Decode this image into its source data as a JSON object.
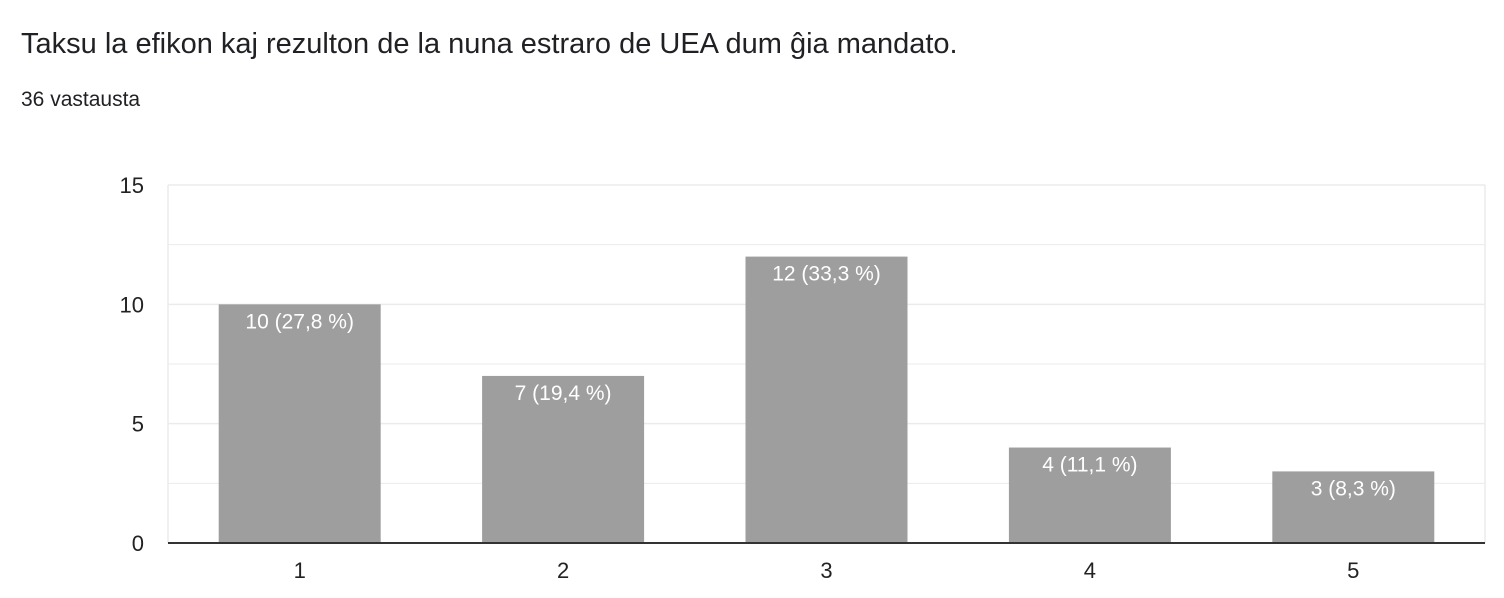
{
  "header": {
    "title": "Taksu la efikon kaj rezulton de la nuna estraro de UEA dum ĝia mandato.",
    "response_count": "36 vastausta"
  },
  "colors": {
    "bar": "#9e9e9e",
    "grid": "#ebebeb",
    "axis": "#333333",
    "bar_label": "#ffffff"
  },
  "chart_data": {
    "type": "bar",
    "title": "Taksu la efikon kaj rezulton de la nuna estraro de UEA dum ĝia mandato.",
    "xlabel": "",
    "ylabel": "",
    "categories": [
      "1",
      "2",
      "3",
      "4",
      "5"
    ],
    "values": [
      10,
      7,
      12,
      4,
      3
    ],
    "data_labels": [
      "10 (27,8 %)",
      "7 (19,4 %)",
      "12 (33,3 %)",
      "4 (11,1 %)",
      "3 (8,3 %)"
    ],
    "ylim": [
      0,
      15
    ],
    "yticks": [
      0,
      5,
      10,
      15
    ],
    "grid": true,
    "legend": "none"
  }
}
